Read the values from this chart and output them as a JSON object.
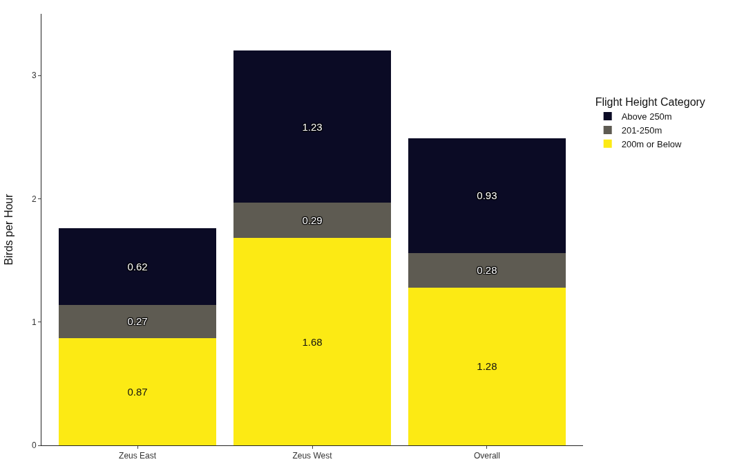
{
  "chart_data": {
    "type": "bar",
    "stacked": true,
    "ylabel": "Birds per Hour",
    "legend_title": "Flight Height Category",
    "categories": [
      "Zeus East",
      "Zeus West",
      "Overall"
    ],
    "series": [
      {
        "name": "200m or Below",
        "color": "#fcea14",
        "values": [
          0.87,
          1.68,
          1.28
        ]
      },
      {
        "name": "201-250m",
        "color": "#5e5b52",
        "values": [
          0.27,
          0.29,
          0.28
        ]
      },
      {
        "name": "Above 250m",
        "color": "#0b0b25",
        "values": [
          0.62,
          1.23,
          0.93
        ]
      }
    ],
    "ylim": [
      0,
      3.5
    ],
    "yticks": [
      0,
      1,
      2,
      3
    ],
    "data_labels": true,
    "grid": false,
    "legend": "right"
  }
}
